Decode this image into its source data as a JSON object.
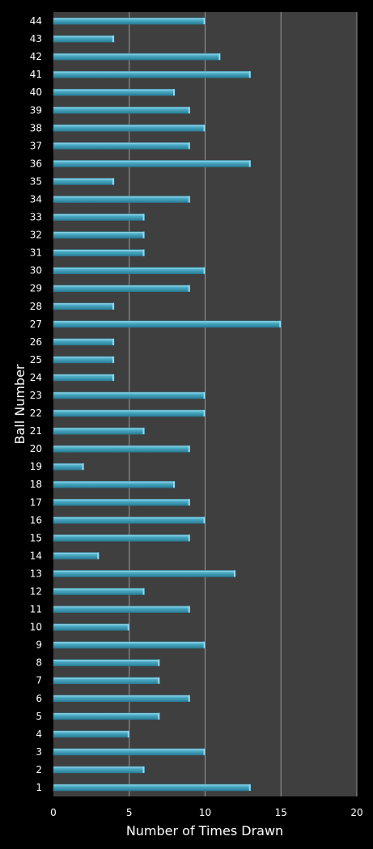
{
  "chart_data": {
    "type": "bar",
    "orientation": "horizontal",
    "xlabel": "Number of Times Drawn",
    "ylabel": "Ball Number",
    "xlim": [
      0,
      20
    ],
    "xticks": [
      "0",
      "5",
      "10",
      "15",
      "20"
    ],
    "grid": true,
    "categories": [
      "1",
      "2",
      "3",
      "4",
      "5",
      "6",
      "7",
      "8",
      "9",
      "10",
      "11",
      "12",
      "13",
      "14",
      "15",
      "16",
      "17",
      "18",
      "19",
      "20",
      "21",
      "22",
      "23",
      "24",
      "25",
      "26",
      "27",
      "28",
      "29",
      "30",
      "31",
      "32",
      "33",
      "34",
      "35",
      "36",
      "37",
      "38",
      "39",
      "40",
      "41",
      "42",
      "43",
      "44"
    ],
    "values": [
      13,
      6,
      10,
      5,
      7,
      9,
      7,
      7,
      10,
      5,
      9,
      6,
      12,
      3,
      9,
      10,
      9,
      8,
      2,
      9,
      6,
      10,
      10,
      4,
      4,
      4,
      15,
      4,
      9,
      10,
      6,
      6,
      6,
      9,
      4,
      13,
      9,
      10,
      9,
      8,
      13,
      11,
      4,
      10
    ]
  },
  "colors": {
    "background": "#000000",
    "plot_area": "#3f3f3f",
    "gridline": "#9a9a9a",
    "bar": "#4bacc6",
    "bar_highlight": "#9bd6ea",
    "bar_shadow": "#2a7d96"
  }
}
